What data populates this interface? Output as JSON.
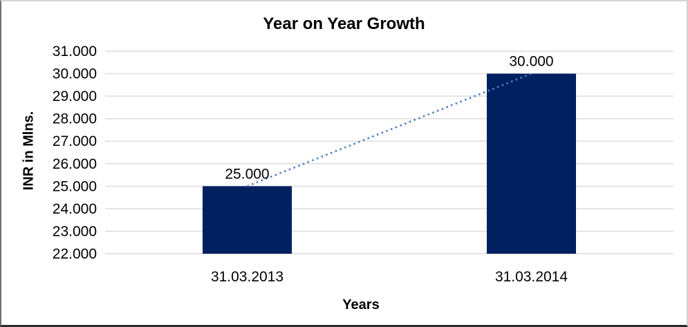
{
  "chart_data": {
    "type": "bar",
    "title": "Year on Year Growth",
    "xlabel": "Years",
    "ylabel": "INR in Mlns.",
    "categories": [
      "31.03.2013",
      "31.03.2014"
    ],
    "values": [
      25000,
      30000
    ],
    "data_labels": [
      "25.000",
      "30.000"
    ],
    "ylim": [
      22000,
      31000
    ],
    "y_tick_values": [
      22000,
      23000,
      24000,
      25000,
      26000,
      27000,
      28000,
      29000,
      30000,
      31000
    ],
    "y_tick_labels": [
      "22.000",
      "23.000",
      "24.000",
      "25.000",
      "26.000",
      "27.000",
      "28.000",
      "29.000",
      "30.000",
      "31.000"
    ],
    "grid": true,
    "legend": "none",
    "colors": {
      "bar": "#002060",
      "trendline": "#4e81bd",
      "gridline": "#d9d9d9",
      "text": "#000000"
    },
    "trendline": {
      "style": "dotted",
      "from_category_index": 0,
      "from_value": 25000,
      "to_category_index": 1,
      "to_value": 30000
    }
  }
}
